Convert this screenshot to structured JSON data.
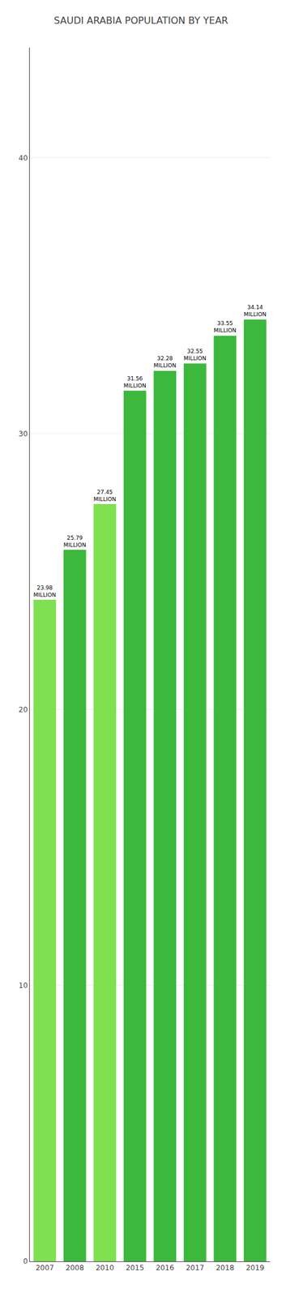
{
  "chart_data": {
    "type": "bar",
    "title": "SAUDI ARABIA POPULATION BY YEAR",
    "categories": [
      "2007",
      "2008",
      "2010",
      "2015",
      "2016",
      "2017",
      "2018",
      "2019"
    ],
    "values": [
      23.98,
      25.79,
      27.45,
      31.56,
      32.28,
      32.55,
      33.55,
      34.14
    ],
    "value_labels": [
      "23.98\nMILLION",
      "25.79\nMILLION",
      "27.45\nMILLION",
      "31.56\nMILLION",
      "32.28\nMILLION",
      "32.55\nMILLION",
      "33.55\nMILLION",
      "34.14\nMILLION"
    ],
    "colors": [
      "#7FE050",
      "#3cb83c",
      "#7FE050",
      "#3cb83c",
      "#3cb83c",
      "#3cb83c",
      "#3cb83c",
      "#3cb83c"
    ],
    "ylim": [
      0,
      44
    ],
    "yticks": [
      0,
      10,
      20,
      30,
      40
    ],
    "grid": true,
    "data_labels": true
  }
}
